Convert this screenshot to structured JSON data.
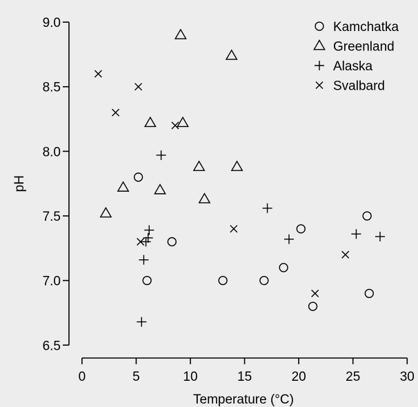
{
  "chart_data": {
    "type": "scatter",
    "xlabel": "Temperature (°C)",
    "ylabel": "pH",
    "xlim": [
      -1.2,
      31
    ],
    "ylim": [
      6.4,
      9.15
    ],
    "x_ticks": [
      0,
      5,
      10,
      15,
      20,
      25,
      30
    ],
    "y_ticks": [
      6.5,
      7.0,
      7.5,
      8.0,
      8.5,
      9.0
    ],
    "y_tick_labels": [
      "6.5",
      "7.0",
      "7.5",
      "8.0",
      "8.5",
      "9.0"
    ],
    "grid": false,
    "legend_position": "top-right",
    "series": [
      {
        "name": "Kamchatka",
        "marker": "circle",
        "points": [
          [
            5.2,
            7.8
          ],
          [
            6.0,
            7.0
          ],
          [
            8.3,
            7.3
          ],
          [
            13.0,
            7.0
          ],
          [
            16.8,
            7.0
          ],
          [
            18.6,
            7.1
          ],
          [
            20.2,
            7.4
          ],
          [
            21.3,
            6.8
          ],
          [
            26.3,
            7.5
          ],
          [
            26.5,
            6.9
          ]
        ]
      },
      {
        "name": "Greenland",
        "marker": "triangle",
        "points": [
          [
            2.2,
            7.52
          ],
          [
            3.8,
            7.72
          ],
          [
            6.3,
            8.22
          ],
          [
            7.2,
            7.7
          ],
          [
            9.1,
            8.9
          ],
          [
            9.3,
            8.22
          ],
          [
            10.8,
            7.88
          ],
          [
            11.3,
            7.63
          ],
          [
            13.8,
            8.74
          ],
          [
            14.3,
            7.88
          ]
        ]
      },
      {
        "name": "Alaska",
        "marker": "plus",
        "points": [
          [
            5.5,
            6.68
          ],
          [
            5.7,
            7.16
          ],
          [
            5.9,
            7.3
          ],
          [
            6.1,
            7.33
          ],
          [
            6.2,
            7.39
          ],
          [
            7.3,
            7.97
          ],
          [
            17.1,
            7.56
          ],
          [
            19.1,
            7.32
          ],
          [
            25.3,
            7.36
          ],
          [
            27.5,
            7.34
          ]
        ]
      },
      {
        "name": "Svalbard",
        "marker": "x",
        "points": [
          [
            1.5,
            8.6
          ],
          [
            3.1,
            8.3
          ],
          [
            5.2,
            8.5
          ],
          [
            5.4,
            7.3
          ],
          [
            8.6,
            8.2
          ],
          [
            14.0,
            7.4
          ],
          [
            21.5,
            6.9
          ],
          [
            24.3,
            7.2
          ]
        ]
      }
    ]
  }
}
